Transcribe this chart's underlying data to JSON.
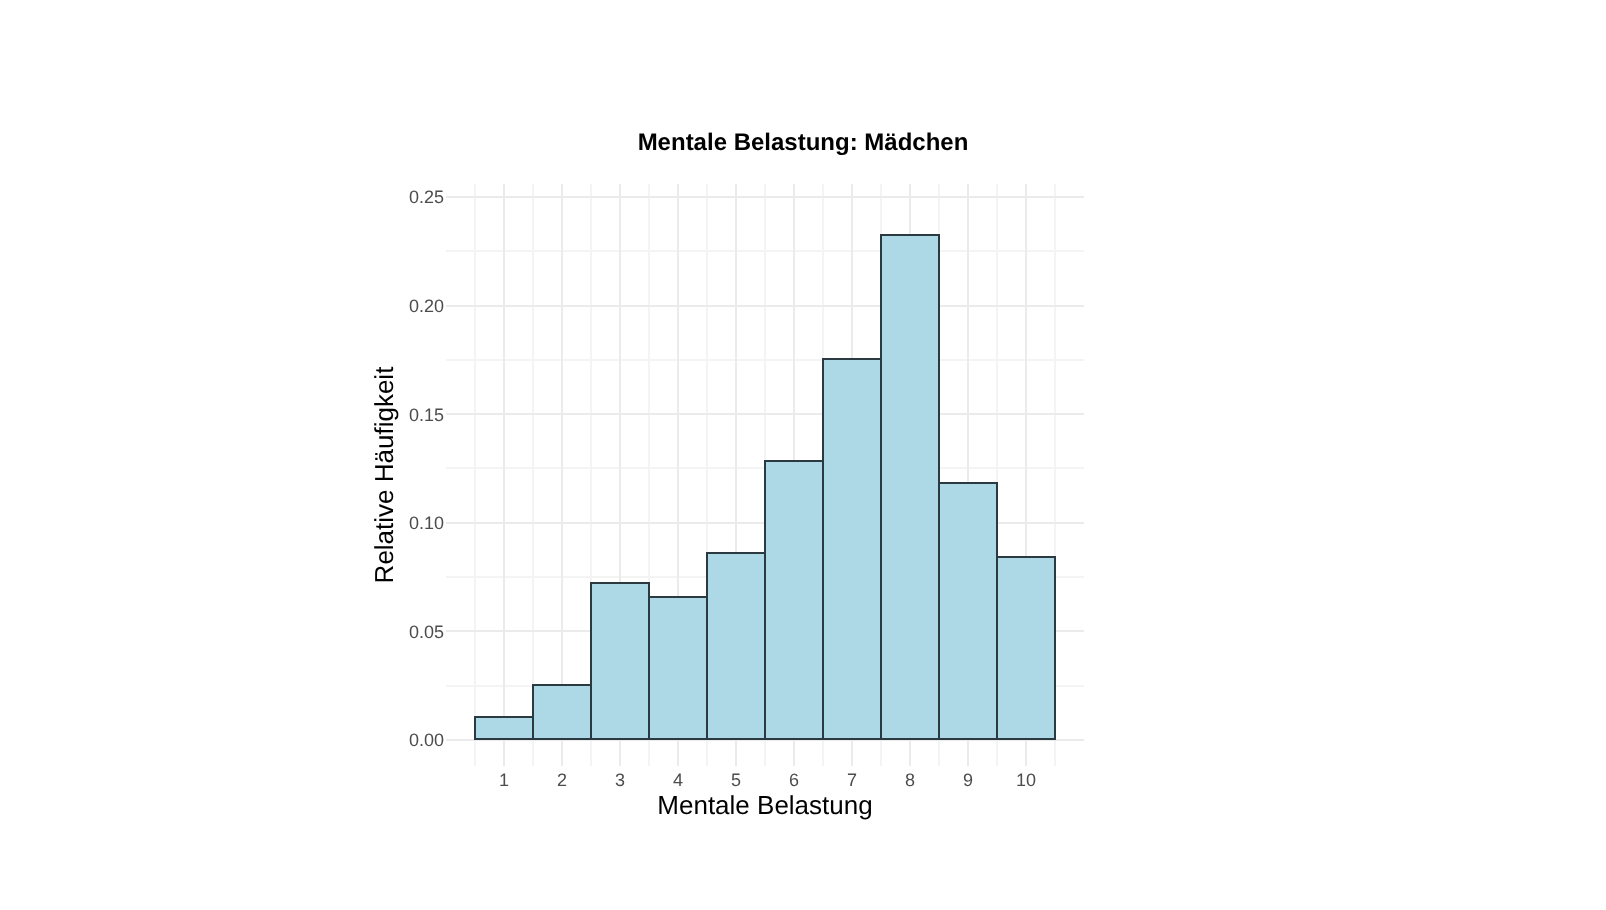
{
  "chart_data": {
    "type": "histogram",
    "title": "Mentale Belastung: Mädchen",
    "xlabel": "Mentale Belastung",
    "ylabel": "Relative Häufigkeit",
    "bins": [
      0.5,
      1.5,
      2.5,
      3.5,
      4.5,
      5.5,
      6.5,
      7.5,
      8.5,
      9.5,
      10.5
    ],
    "values": [
      0.01,
      0.025,
      0.072,
      0.065,
      0.086,
      0.128,
      0.175,
      0.232,
      0.118,
      0.084
    ],
    "color": "#add8e6",
    "xlim": [
      0,
      11
    ],
    "xticks": [
      1,
      2,
      3,
      4,
      5,
      6,
      7,
      8,
      9,
      10
    ],
    "ylim": [
      -0.012,
      0.256
    ],
    "yticks": [
      {
        "value": 0,
        "label": "0.00"
      },
      {
        "value": 0.05,
        "label": "0.05"
      },
      {
        "value": 0.1,
        "label": "0.10"
      },
      {
        "value": 0.15,
        "label": "0.15"
      },
      {
        "value": 0.2,
        "label": "0.20"
      },
      {
        "value": 0.25,
        "label": "0.25"
      }
    ],
    "grid": true
  }
}
